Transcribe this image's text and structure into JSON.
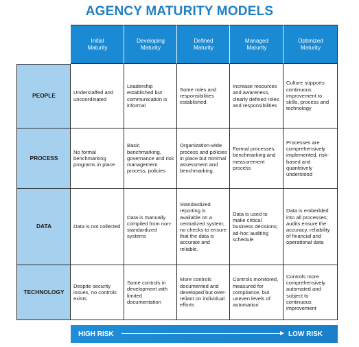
{
  "title": "AGENCY MATURITY MODELS",
  "columns": [
    "Initial\nMaturity",
    "Developing\nMaturity",
    "Defined\nMaturity",
    "Managed\nMaturity",
    "Optimized\nMaturity"
  ],
  "rows": [
    {
      "label": "PEOPLE",
      "cells": [
        "Understaffed and uncoordinated",
        "Leadership established but communication is informal",
        "Some roles and responsibilities established.",
        "Increase resources and awareness, clearly defined roles and responsibilities",
        "Culture supports continuous improvement to skills, process and technology"
      ]
    },
    {
      "label": "PROCESS",
      "cells": [
        "No formal benchmarking programs in place",
        "Basic benchmarking, governance and risk management process, policies",
        "Organization-wide process and policies in place but minimal assessment and benchmarking.",
        "Formal processes, benchmarking and measurement process",
        "Processes are comprehensively implemented, risk-based and quantitively understood"
      ]
    },
    {
      "label": "DATA",
      "cells": [
        "Data is not collected",
        "Data is manually compiled from non-standardized systems",
        "Standardized reporting is available on a centralized system; no checks to ensure that the data is accurate and reliable.",
        "Data is used to make critical business decisions; ad-hoc auditing schedule",
        "Data is embedded into all processes; audits ensure the accuracy, reliability of financial and operational data"
      ]
    },
    {
      "label": "TECHNOLOGY",
      "cells": [
        "Despite security issues, no controls exists",
        "Some controls in development with limited documentation",
        "More controls documented and developed but over-reliant on individual efforts",
        "Controls monitored, measured for compliance, but uneven levels of automation",
        "Controls more comprehensively automated and subject to continuous improvement"
      ]
    }
  ],
  "risk": {
    "left": "HIGH RISK",
    "right": "LOW RISK"
  }
}
